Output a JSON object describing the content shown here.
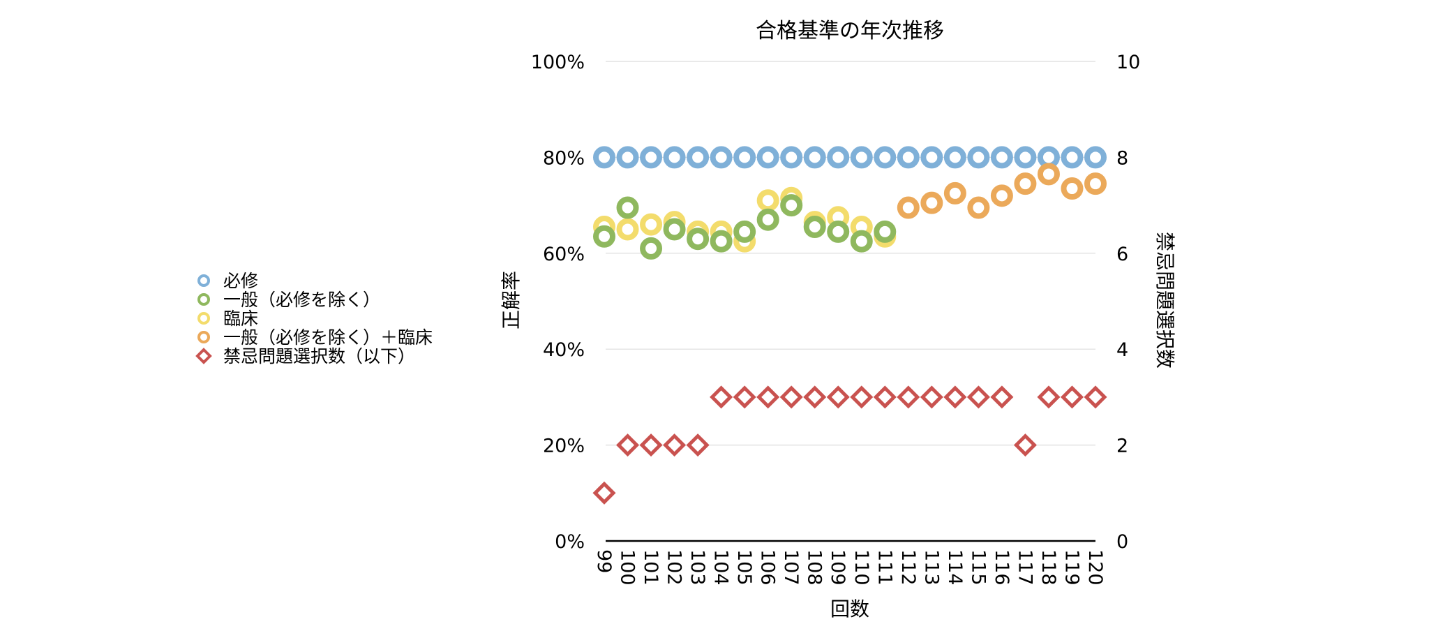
{
  "chart_data": {
    "type": "scatter",
    "title": "合格基準の年次推移",
    "xlabel": "回数",
    "ylabel": "正解率",
    "y2label": "禁忌問題選択数",
    "categories": [
      "99",
      "100",
      "101",
      "102",
      "103",
      "104",
      "105",
      "106",
      "107",
      "108",
      "109",
      "110",
      "111",
      "112",
      "113",
      "114",
      "115",
      "116",
      "117",
      "118",
      "119",
      "120"
    ],
    "y_ticks": [
      "0%",
      "20%",
      "40%",
      "60%",
      "80%",
      "100%"
    ],
    "y2_ticks": [
      "0",
      "2",
      "4",
      "6",
      "8",
      "10"
    ],
    "ylim": [
      0,
      100
    ],
    "y2lim": [
      0,
      10
    ],
    "grid": true,
    "legend_position": "left",
    "series": [
      {
        "name": "必修",
        "color": "#7fb0d8",
        "marker": "ring",
        "axis": "left",
        "values": [
          80,
          80,
          80,
          80,
          80,
          80,
          80,
          80,
          80,
          80,
          80,
          80,
          80,
          80,
          80,
          80,
          80,
          80,
          80,
          80,
          80,
          80
        ]
      },
      {
        "name": "臨床",
        "color": "#f3dc6c",
        "marker": "ring",
        "axis": "left",
        "values": [
          65.5,
          65,
          66,
          66.5,
          64.5,
          64.5,
          62.5,
          71,
          71.5,
          66.5,
          67.5,
          65.5,
          63.5,
          null,
          null,
          null,
          null,
          null,
          null,
          null,
          null,
          null
        ]
      },
      {
        "name": "一般（必修を除く）",
        "color": "#8fb85e",
        "marker": "ring",
        "axis": "left",
        "values": [
          63.5,
          69.5,
          61,
          65,
          63,
          62.5,
          64.5,
          67,
          70,
          65.5,
          64.5,
          62.5,
          64.5,
          null,
          null,
          null,
          null,
          null,
          null,
          null,
          null,
          null
        ]
      },
      {
        "name": "一般（必修を除く）＋臨床",
        "color": "#eba95a",
        "marker": "ring",
        "axis": "left",
        "values": [
          null,
          null,
          null,
          null,
          null,
          null,
          null,
          null,
          null,
          null,
          null,
          null,
          null,
          69.5,
          70.5,
          72.5,
          69.5,
          72,
          74.5,
          76.5,
          73.5,
          74.5
        ]
      },
      {
        "name": "禁忌問題選択数（以下）",
        "color": "#c9524f",
        "marker": "diamond",
        "axis": "right",
        "values": [
          1,
          2,
          2,
          2,
          2,
          3,
          3,
          3,
          3,
          3,
          3,
          3,
          3,
          3,
          3,
          3,
          3,
          3,
          2,
          3,
          3,
          3
        ]
      }
    ],
    "legend_order": [
      0,
      2,
      1,
      3,
      4
    ]
  }
}
